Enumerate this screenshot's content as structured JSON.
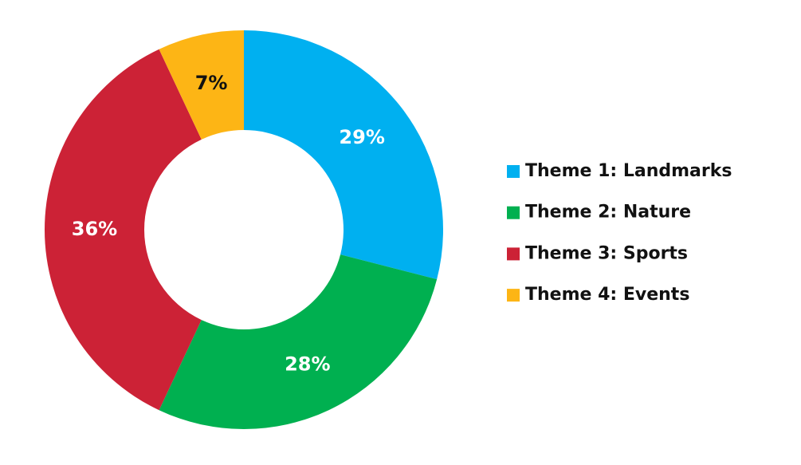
{
  "chart_data": {
    "type": "donut",
    "categories": [
      "Theme 1: Landmarks",
      "Theme 2: Nature",
      "Theme 3: Sports",
      "Theme 4: Events"
    ],
    "values": [
      29,
      28,
      36,
      7
    ],
    "value_labels": [
      "29%",
      "28%",
      "36%",
      "7%"
    ],
    "colors": [
      "#00b0f0",
      "#00b050",
      "#cc2236",
      "#fdb515"
    ],
    "value_label_colors": [
      "#ffffff",
      "#ffffff",
      "#ffffff",
      "#111111"
    ],
    "legend": "right"
  }
}
